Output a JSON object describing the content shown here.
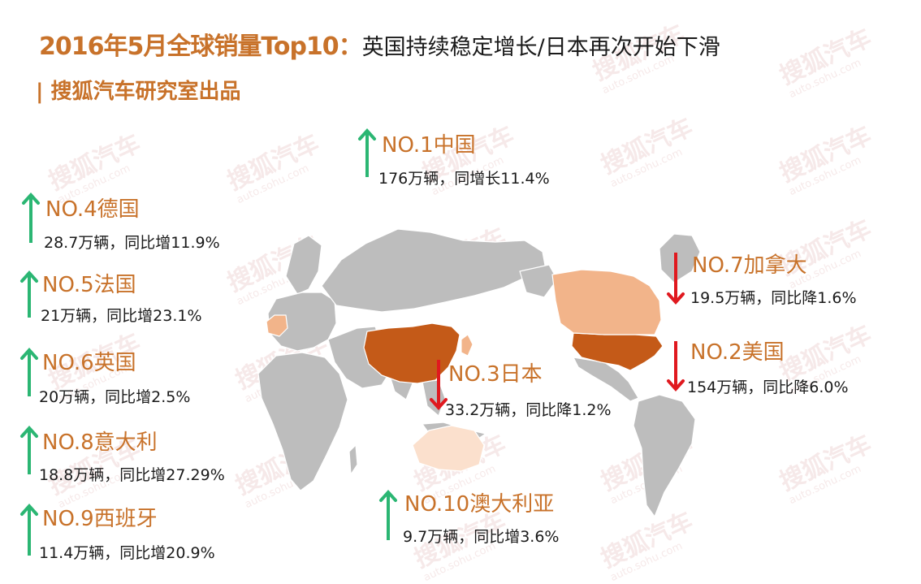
{
  "header": {
    "title_highlight": "2016年5月全球销量Top10：",
    "title_rest": "英国持续稳定增长/日本再次开始下滑",
    "subtitle": "| 搜狐汽车研究室出品"
  },
  "watermark": {
    "text": "搜狐汽车",
    "sub": "auto.sohu.com"
  },
  "colors": {
    "accent": "#c8722a",
    "up": "#2bb673",
    "down": "#e0191f",
    "land": "#bdbdbd",
    "highlight_dark": "#c45a18",
    "highlight_light": "#f2b48a",
    "highlight_pale": "#fbe0cd"
  },
  "rankings": [
    {
      "rank": "NO.1中国",
      "stat": "176万辆，同增长11.4%",
      "trend": "up"
    },
    {
      "rank": "NO.2美国",
      "stat": "154万辆，同比降6.0%",
      "trend": "down"
    },
    {
      "rank": "NO.3日本",
      "stat": "33.2万辆，同比降1.2%",
      "trend": "down"
    },
    {
      "rank": "NO.4德国",
      "stat": "28.7万辆，同比增11.9%",
      "trend": "up"
    },
    {
      "rank": "NO.5法国",
      "stat": "21万辆，同比增23.1%",
      "trend": "up"
    },
    {
      "rank": "NO.6英国",
      "stat": "20万辆，同比增2.5%",
      "trend": "up"
    },
    {
      "rank": "NO.7加拿大",
      "stat": "19.5万辆，同比降1.6%",
      "trend": "down"
    },
    {
      "rank": "NO.8意大利",
      "stat": "18.8万辆，同比增27.29%",
      "trend": "up"
    },
    {
      "rank": "NO.9西班牙",
      "stat": "11.4万辆，同比增20.9%",
      "trend": "up"
    },
    {
      "rank": "NO.10澳大利亚",
      "stat": "9.7万辆，同比增3.6%",
      "trend": "up"
    }
  ]
}
